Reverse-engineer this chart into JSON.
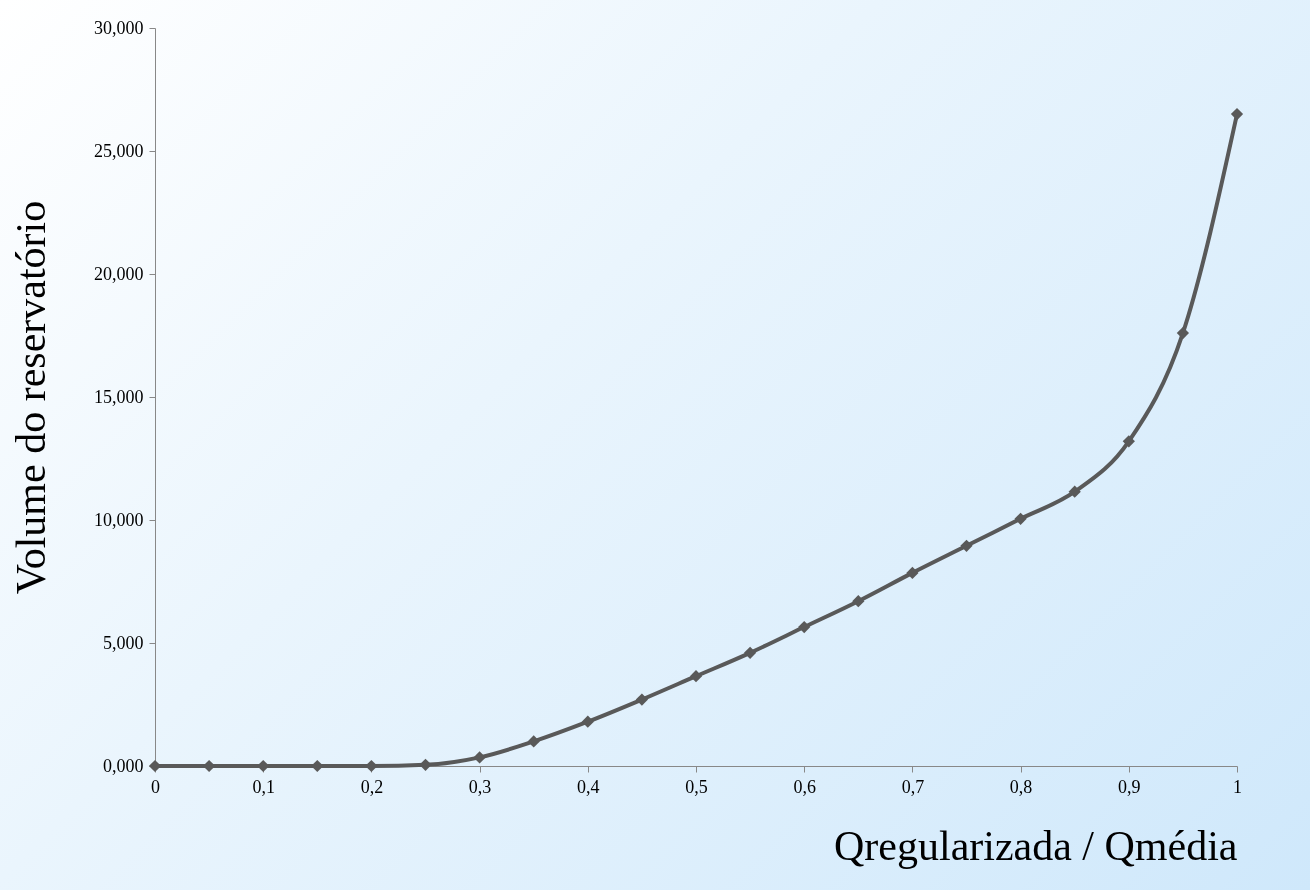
{
  "chart_data": {
    "type": "line",
    "xlabel": "Qregularizada / Qmédia",
    "ylabel": "Volume do reservatório",
    "x": [
      0,
      0.05,
      0.1,
      0.15,
      0.2,
      0.25,
      0.3,
      0.35,
      0.4,
      0.45,
      0.5,
      0.55,
      0.6,
      0.65,
      0.7,
      0.75,
      0.8,
      0.85,
      0.9,
      0.95,
      1
    ],
    "series": [
      {
        "color": "#595959",
        "values": [
          0,
          0,
          0,
          0,
          0,
          0.05,
          0.35,
          1,
          1.8,
          2.7,
          3.65,
          4.6,
          5.65,
          6.7,
          7.85,
          8.95,
          10.05,
          11.15,
          13.2,
          17.6,
          26.5
        ]
      }
    ],
    "xlim": [
      0,
      1
    ],
    "xticks": [
      0,
      {
        "value": 0.1,
        "label": "0,1"
      },
      {
        "value": 0.2,
        "label": "0,2"
      },
      {
        "value": 0.3,
        "label": "0,3"
      },
      {
        "value": 0.4,
        "label": "0,4"
      },
      {
        "value": 0.5,
        "label": "0,5"
      },
      {
        "value": 0.6,
        "label": "0,6"
      },
      {
        "value": 0.7,
        "label": "0,7"
      },
      {
        "value": 0.8,
        "label": "0,8"
      },
      {
        "value": 0.9,
        "label": "0,9"
      },
      1
    ],
    "ylim": [
      0,
      30
    ],
    "yticks": [
      {
        "value": 0,
        "label": "0,000"
      },
      {
        "value": 5,
        "label": "5,000"
      },
      {
        "value": 10,
        "label": "10,000"
      },
      {
        "value": 15,
        "label": "15,000"
      },
      {
        "value": 20,
        "label": "20,000"
      },
      {
        "value": 25,
        "label": "25,000"
      },
      {
        "value": 30,
        "label": "30,000"
      }
    ],
    "grid": false,
    "marker": "diamond",
    "line_style": "solid"
  }
}
